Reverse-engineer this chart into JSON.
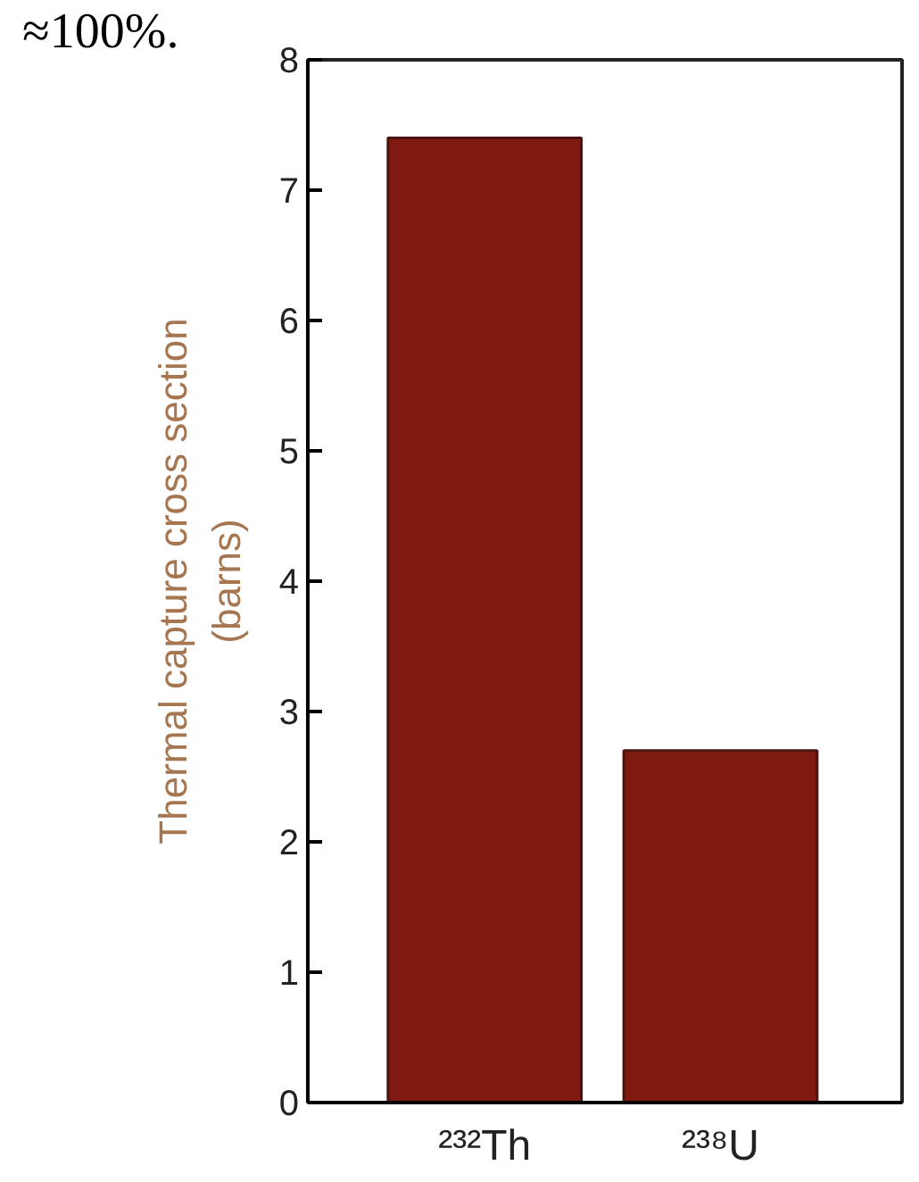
{
  "chart_data": {
    "type": "bar",
    "ylabel": "Thermal capture cross section\n(barns)",
    "categories": [
      "²³²Th",
      "²³⁸U"
    ],
    "values": [
      7.4,
      2.7
    ],
    "color": "#7f1a10",
    "ylim": [
      0,
      8
    ],
    "yticks": [
      0,
      1,
      2,
      3,
      4,
      5,
      6,
      7,
      8
    ],
    "grid": false,
    "annotations": [
      "≈100%."
    ]
  }
}
